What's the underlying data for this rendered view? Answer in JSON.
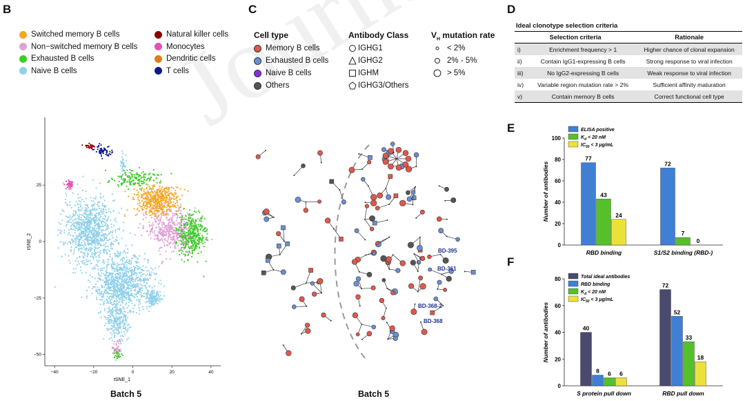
{
  "panel_b": {
    "letter": "B",
    "legend_left": [
      {
        "label": "Switched memory B cells",
        "color": "#f5a623"
      },
      {
        "label": "Non−switched memory B cells",
        "color": "#e0a2d6"
      },
      {
        "label": "Exhausted B cells",
        "color": "#3dcc2b"
      },
      {
        "label": "Naive B cells",
        "color": "#8fd0ea"
      }
    ],
    "legend_right": [
      {
        "label": "Natural killer cells",
        "color": "#8b0000"
      },
      {
        "label": "Monocytes",
        "color": "#e64fb0"
      },
      {
        "label": "Dendritic cells",
        "color": "#e07b1a"
      },
      {
        "label": "T cells",
        "color": "#0a1a8a"
      }
    ],
    "xlabel": "tSNE_1",
    "ylabel": "tSNE_2",
    "xticks": [
      "−40",
      "−20",
      "0",
      "20",
      "40"
    ],
    "yticks": [
      "25",
      "0",
      "−25",
      "−50"
    ],
    "caption": "Batch 5"
  },
  "panel_c": {
    "letter": "C",
    "cell_type_title": "Cell type",
    "cell_types": [
      {
        "label": "Memory B cells",
        "color": "#e0584a"
      },
      {
        "label": "Exhausted B cells",
        "color": "#6b8fd6"
      },
      {
        "label": "Naive B cells",
        "color": "#8a2be2"
      },
      {
        "label": "Others",
        "color": "#555555"
      }
    ],
    "antibody_title": "Antibody Class",
    "antibody_classes": [
      "IGHG1",
      "IGHG2",
      "IGHM",
      "IGHG3/Others"
    ],
    "vh_title_prefix": "V",
    "vh_title_sub": "H",
    "vh_title_suffix": " mutation rate",
    "vh_rates": [
      "< 2%",
      "2% - 5%",
      "> 5%"
    ],
    "labels": [
      "BD-395",
      "BD-361",
      "BD-368-2",
      "BD-368"
    ],
    "caption": "Batch 5"
  },
  "panel_d": {
    "letter": "D",
    "title": "Ideal clonotype selection criteria",
    "headers": [
      "Selection criteria",
      "Rationale"
    ],
    "rows": [
      {
        "num": "i)",
        "criteria": "Enrichment frequency > 1",
        "rationale": "Higher chance of clonal expansion"
      },
      {
        "num": "ii)",
        "criteria": "Contain IgG1-expressing B cells",
        "rationale": "Strong response to viral infection"
      },
      {
        "num": "iii)",
        "criteria": "No IgG2-expressing B cells",
        "rationale": "Weak response to viral infection"
      },
      {
        "num": "iv)",
        "criteria": "Variable region mutation rate > 2%",
        "rationale": "Sufficient affinity maturation"
      },
      {
        "num": "v)",
        "criteria": "Contain memory B cells",
        "rationale": "Correct functional cell type"
      }
    ]
  },
  "panel_e": {
    "letter": "E"
  },
  "panel_f": {
    "letter": "F"
  },
  "watermark": "Journal Pre",
  "chart_data": [
    {
      "type": "bar",
      "title": "",
      "xlabel": "",
      "ylabel": "Number of antibodies",
      "ylim": [
        0,
        100
      ],
      "yticks": [
        0,
        20,
        40,
        60,
        80,
        100
      ],
      "categories": [
        "RBD binding",
        "S1/S2 binding (RBD-)"
      ],
      "series": [
        {
          "name": "ELISA positive",
          "color": "#3f7fd4",
          "values": [
            77,
            72
          ]
        },
        {
          "name": "K_d < 20 nM",
          "color": "#56c02b",
          "values": [
            43,
            7
          ]
        },
        {
          "name": "IC_50 < 3 μg/mL",
          "color": "#ece13a",
          "values": [
            24,
            0
          ]
        }
      ],
      "legend_position": "top-left"
    },
    {
      "type": "bar",
      "title": "",
      "xlabel": "",
      "ylabel": "Number of antibodies",
      "ylim": [
        0,
        80
      ],
      "yticks": [
        0,
        20,
        40,
        60,
        80
      ],
      "categories": [
        "S protein pull down",
        "RBD pull down"
      ],
      "series": [
        {
          "name": "Total ideal antibodies",
          "color": "#4a4a6e",
          "values": [
            40,
            72
          ]
        },
        {
          "name": "RBD binding",
          "color": "#3f7fd4",
          "values": [
            8,
            52
          ]
        },
        {
          "name": "K_d < 20 nM",
          "color": "#56c02b",
          "values": [
            6,
            33
          ]
        },
        {
          "name": "IC_50 < 3 μg/mL",
          "color": "#ece13a",
          "values": [
            6,
            18
          ]
        }
      ],
      "legend_position": "top-left"
    }
  ]
}
